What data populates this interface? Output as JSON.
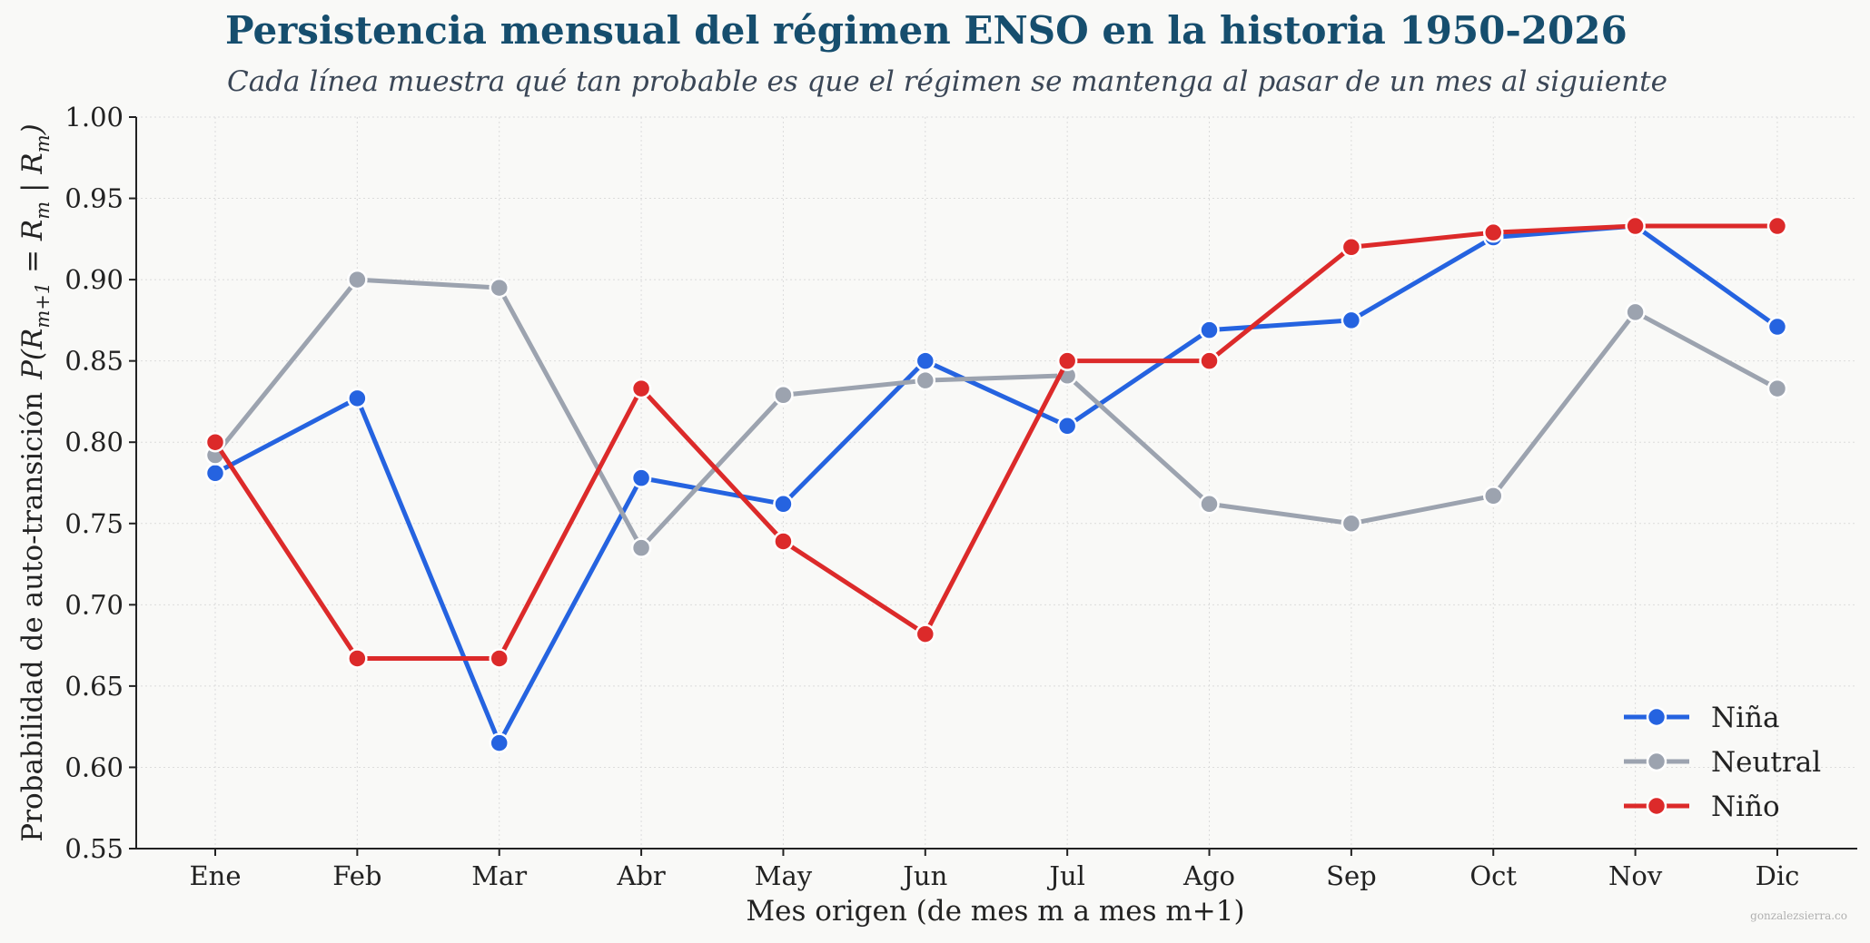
{
  "chart_data": {
    "type": "line",
    "title": "Persistencia mensual del régimen ENSO en la historia 1950-2026",
    "subtitle": "Cada línea muestra qué tan probable es que el régimen se mantenga al pasar de un mes al siguiente",
    "xlabel": "Mes origen (de mes m a mes m+1)",
    "ylabel_text": "Probabilidad de auto-transición",
    "ylabel_math": "P(Rm+1 = Rm | Rm)",
    "categories": [
      "Ene",
      "Feb",
      "Mar",
      "Abr",
      "May",
      "Jun",
      "Jul",
      "Ago",
      "Sep",
      "Oct",
      "Nov",
      "Dic"
    ],
    "ylim": [
      0.55,
      1.0
    ],
    "yticks": [
      "0.55",
      "0.60",
      "0.65",
      "0.70",
      "0.75",
      "0.80",
      "0.85",
      "0.90",
      "0.95",
      "1.00"
    ],
    "grid": true,
    "legend_position": "bottom-right",
    "series": [
      {
        "name": "Niña",
        "color": "#2563e0",
        "values": [
          0.781,
          0.827,
          0.615,
          0.778,
          0.762,
          0.85,
          0.81,
          0.869,
          0.875,
          0.926,
          0.933,
          0.871
        ]
      },
      {
        "name": "Neutral",
        "color": "#9ca3af",
        "values": [
          0.792,
          0.9,
          0.895,
          0.735,
          0.829,
          0.838,
          0.841,
          0.762,
          0.75,
          0.767,
          0.88,
          0.833
        ]
      },
      {
        "name": "Niño",
        "color": "#dc2a2a",
        "values": [
          0.8,
          0.667,
          0.667,
          0.833,
          0.739,
          0.682,
          0.85,
          0.85,
          0.92,
          0.929,
          0.933,
          0.933
        ]
      }
    ]
  },
  "watermark": "gonzalezsierra.co"
}
